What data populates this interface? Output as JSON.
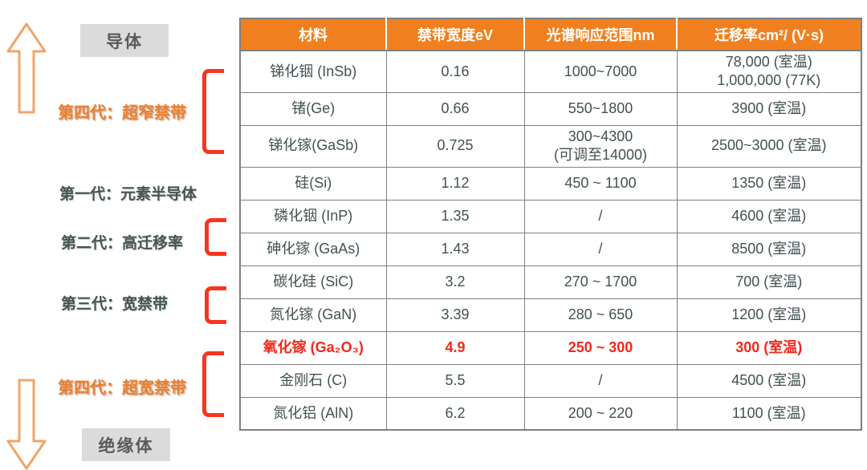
{
  "colors": {
    "header_orange": "#f0801f",
    "label_orange": "#e8802f",
    "bracket_red": "#f9341f",
    "highlight_red": "#f4281a",
    "cell_text": "#415252",
    "terminal_gray": "#dbdbdb",
    "arrow_orange": "#f2a469"
  },
  "left_panel": {
    "conductor_label": "导体",
    "insulator_label": "绝缘体",
    "generations": [
      {
        "label": "第四代：超窄禁带",
        "style": "orange"
      },
      {
        "label": "第一代：元素半导体",
        "style": "dark"
      },
      {
        "label": "第二代：高迁移率",
        "style": "dark"
      },
      {
        "label": "第三代：宽禁带",
        "style": "dark"
      },
      {
        "label": "第四代：超宽禁带",
        "style": "orange"
      }
    ]
  },
  "table": {
    "headers": [
      "材料",
      "禁带宽度eV",
      "光谱响应范围nm",
      "迁移率cm²/ (V·s)"
    ],
    "rows": [
      {
        "material": "锑化铟 (InSb)",
        "bandgap": "0.16",
        "spectral": "1000~7000",
        "mobility": "78,000 (室温)\n1,000,000 (77K)",
        "highlight": false
      },
      {
        "material": "锗(Ge)",
        "bandgap": "0.66",
        "spectral": "550~1800",
        "mobility": "3900 (室温)",
        "highlight": false
      },
      {
        "material": "锑化镓(GaSb)",
        "bandgap": "0.725",
        "spectral": "300~4300\n(可调至14000)",
        "mobility": "2500~3000 (室温)",
        "highlight": false
      },
      {
        "material": "硅(Si)",
        "bandgap": "1.12",
        "spectral": "450 ~ 1100",
        "mobility": "1350 (室温)",
        "highlight": false
      },
      {
        "material": "磷化铟 (InP)",
        "bandgap": "1.35",
        "spectral": "/",
        "mobility": "4600 (室温)",
        "highlight": false
      },
      {
        "material": "砷化镓 (GaAs)",
        "bandgap": "1.43",
        "spectral": "/",
        "mobility": "8500 (室温)",
        "highlight": false
      },
      {
        "material": "碳化硅 (SiC)",
        "bandgap": "3.2",
        "spectral": "270 ~ 1700",
        "mobility": "700 (室温)",
        "highlight": false
      },
      {
        "material": "氮化镓 (GaN)",
        "bandgap": "3.39",
        "spectral": "280 ~ 650",
        "mobility": "1200 (室温)",
        "highlight": false
      },
      {
        "material": "氧化镓 (Ga₂O₃)",
        "bandgap": "4.9",
        "spectral": "250 ~ 300",
        "mobility": "300 (室温)",
        "highlight": true
      },
      {
        "material": "金刚石 (C)",
        "bandgap": "5.5",
        "spectral": "/",
        "mobility": "4500 (室温)",
        "highlight": false
      },
      {
        "material": "氮化铝 (AlN)",
        "bandgap": "6.2",
        "spectral": "200 ~ 220",
        "mobility": "1100 (室温)",
        "highlight": false
      }
    ]
  }
}
